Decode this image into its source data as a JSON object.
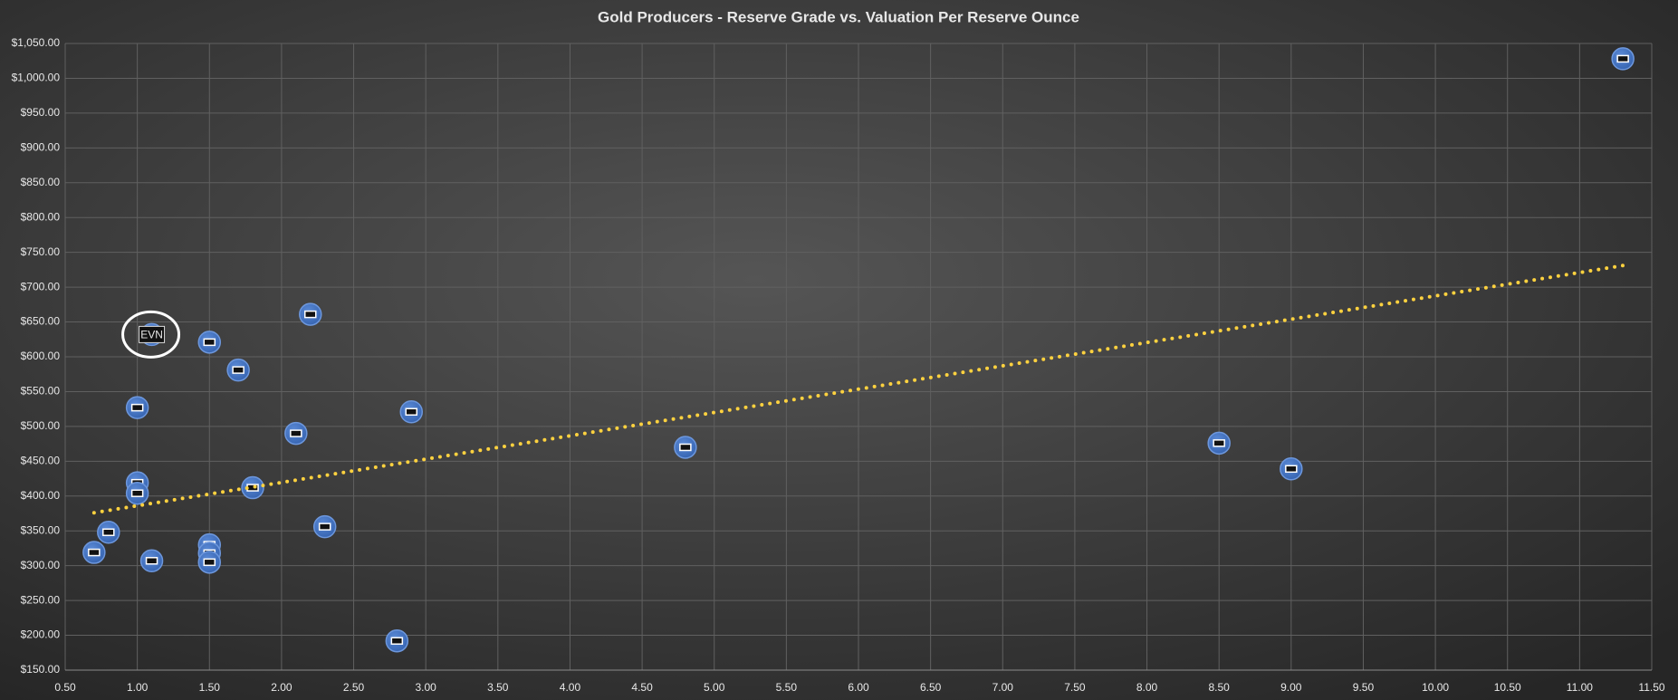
{
  "chart_data": {
    "type": "scatter",
    "title": "Gold Producers - Reserve Grade vs. Valuation Per Reserve Ounce",
    "x": [
      11.3,
      1.1,
      1.5,
      1.7,
      2.2,
      1.0,
      2.1,
      2.9,
      4.8,
      8.5,
      9.0,
      1.0,
      1.0,
      1.8,
      0.8,
      0.7,
      1.1,
      1.5,
      1.5,
      1.5,
      2.3,
      2.8
    ],
    "values": [
      1028,
      632,
      621,
      581,
      661,
      527,
      490,
      521,
      470,
      476,
      439,
      419,
      404,
      412,
      348,
      319,
      307,
      330,
      318,
      305,
      356,
      192
    ],
    "labels": [
      null,
      "EVN",
      null,
      null,
      null,
      null,
      null,
      null,
      null,
      null,
      null,
      null,
      null,
      null,
      null,
      null,
      null,
      null,
      null,
      null,
      null,
      null
    ],
    "color": "#4472c4",
    "trendline": {
      "x": [
        0.7,
        11.3
      ],
      "values": [
        376,
        731
      ],
      "color": "#ffd23f"
    },
    "xlim": [
      0.5,
      11.5
    ],
    "ylim": [
      150,
      1050
    ],
    "xticks": [
      {
        "value": 0.5,
        "label": "0.50"
      },
      {
        "value": 1,
        "label": "1.00"
      },
      {
        "value": 1.5,
        "label": "1.50"
      },
      {
        "value": 2,
        "label": "2.00"
      },
      {
        "value": 2.5,
        "label": "2.50"
      },
      {
        "value": 3,
        "label": "3.00"
      },
      {
        "value": 3.5,
        "label": "3.50"
      },
      {
        "value": 4,
        "label": "4.00"
      },
      {
        "value": 4.5,
        "label": "4.50"
      },
      {
        "value": 5,
        "label": "5.00"
      },
      {
        "value": 5.5,
        "label": "5.50"
      },
      {
        "value": 6,
        "label": "6.00"
      },
      {
        "value": 6.5,
        "label": "6.50"
      },
      {
        "value": 7,
        "label": "7.00"
      },
      {
        "value": 7.5,
        "label": "7.50"
      },
      {
        "value": 8,
        "label": "8.00"
      },
      {
        "value": 8.5,
        "label": "8.50"
      },
      {
        "value": 9,
        "label": "9.00"
      },
      {
        "value": 9.5,
        "label": "9.50"
      },
      {
        "value": 10,
        "label": "10.00"
      },
      {
        "value": 10.5,
        "label": "10.50"
      },
      {
        "value": 11,
        "label": "11.00"
      },
      {
        "value": 11.5,
        "label": "11.50"
      }
    ],
    "yticks": [
      {
        "value": 150,
        "label": "$150.00"
      },
      {
        "value": 200,
        "label": "$200.00"
      },
      {
        "value": 250,
        "label": "$250.00"
      },
      {
        "value": 300,
        "label": "$300.00"
      },
      {
        "value": 350,
        "label": "$350.00"
      },
      {
        "value": 400,
        "label": "$400.00"
      },
      {
        "value": 450,
        "label": "$450.00"
      },
      {
        "value": 500,
        "label": "$500.00"
      },
      {
        "value": 550,
        "label": "$550.00"
      },
      {
        "value": 600,
        "label": "$600.00"
      },
      {
        "value": 650,
        "label": "$650.00"
      },
      {
        "value": 700,
        "label": "$700.00"
      },
      {
        "value": 750,
        "label": "$750.00"
      },
      {
        "value": 800,
        "label": "$800.00"
      },
      {
        "value": 850,
        "label": "$850.00"
      },
      {
        "value": 900,
        "label": "$900.00"
      },
      {
        "value": 950,
        "label": "$950.00"
      },
      {
        "value": 1000,
        "label": "$1,000.00"
      },
      {
        "value": 1050,
        "label": "$1,050.00"
      }
    ],
    "grid": true
  }
}
